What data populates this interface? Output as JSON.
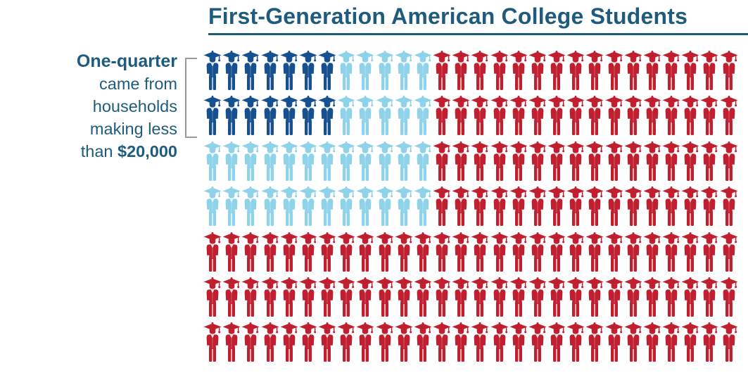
{
  "header": {
    "title": "First-Generation American College Students"
  },
  "label": {
    "line1": "One-quarter",
    "line2": "came from",
    "line3": "households",
    "line4": "making less",
    "line5_prefix": "than ",
    "line5_amount": "$20,000"
  },
  "colors": {
    "title_blue": "#1e5b7d",
    "bracket_gray": "#9a9a9a"
  },
  "chart_data": {
    "type": "pictograph",
    "title": "First-Generation American College Students",
    "annotation": "One-quarter came from households making less than $20,000",
    "unit_icon": "graduate-person",
    "grid": {
      "rows": 7,
      "columns": 28,
      "total_icons": 196
    },
    "colors": {
      "dark": "#17508f",
      "light": "#8ed3ea",
      "red": "#c01f2f"
    },
    "groups": [
      {
        "key": "dark",
        "color": "#17508f",
        "count": 14
      },
      {
        "key": "light",
        "color": "#8ed3ea",
        "count": 34
      },
      {
        "key": "red",
        "color": "#c01f2f",
        "count": 148
      }
    ],
    "highlight": {
      "blue_icons_total": 48,
      "note": "blue icons (dark + light) = 48 of 196 ≈ one-quarter"
    },
    "row_layout": [
      [
        [
          "dark",
          7
        ],
        [
          "light",
          5
        ],
        [
          "red",
          16
        ]
      ],
      [
        [
          "dark",
          7
        ],
        [
          "light",
          5
        ],
        [
          "red",
          16
        ]
      ],
      [
        [
          "light",
          12
        ],
        [
          "red",
          16
        ]
      ],
      [
        [
          "light",
          12
        ],
        [
          "red",
          16
        ]
      ],
      [
        [
          "red",
          28
        ]
      ],
      [
        [
          "red",
          28
        ]
      ],
      [
        [
          "red",
          28
        ]
      ]
    ]
  }
}
